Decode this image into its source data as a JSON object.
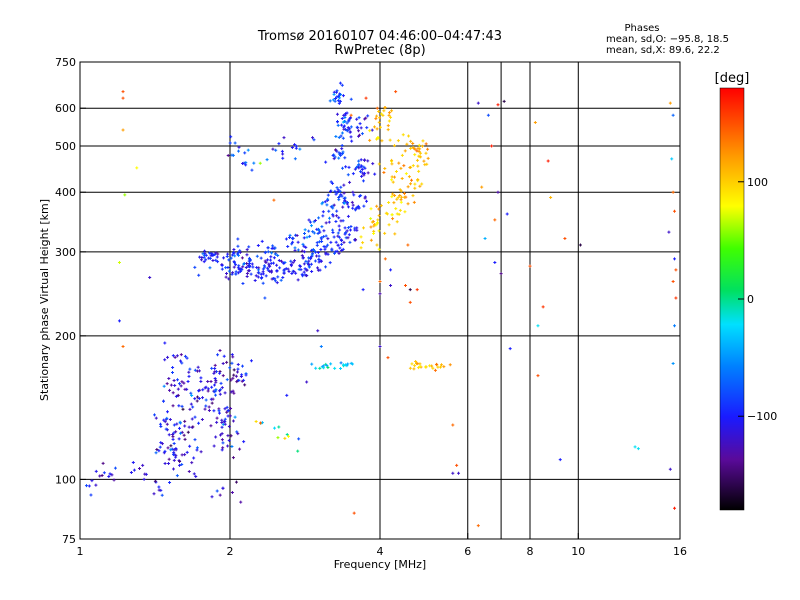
{
  "chart_data": {
    "type": "scatter",
    "title": "Tromsø 20160107 04:46:00–04:47:43",
    "subtitle": "RwPretec (8p)",
    "xlabel": "Frequency [MHz]",
    "ylabel": "Stationary phase Virtual Height [km]",
    "x_scale": "log",
    "y_scale": "log",
    "xlim": [
      1,
      16
    ],
    "ylim": [
      75,
      750
    ],
    "x_ticks": [
      1,
      2,
      4,
      6,
      8,
      10,
      16
    ],
    "x_tick_labels": [
      "1",
      "2",
      "4",
      "6",
      "8",
      "10",
      "16"
    ],
    "x_gridlines": [
      2,
      4,
      6,
      7,
      8,
      10
    ],
    "y_ticks": [
      75,
      100,
      200,
      300,
      400,
      500,
      600,
      750
    ],
    "y_tick_labels": [
      "75",
      "100",
      "200",
      "300",
      "400",
      "500",
      "600",
      "750"
    ],
    "y_gridlines": [
      100,
      200,
      300,
      400,
      500,
      600
    ],
    "grid": true,
    "info": {
      "heading": "Phases",
      "line_o": "mean, sd,O: −95.8, 18.5",
      "line_x": "mean, sd,X:  89.6, 22.2"
    },
    "colorbar": {
      "label": "[deg]",
      "range": [
        -180,
        180
      ],
      "ticks": [
        -100,
        0,
        100
      ],
      "tick_labels": [
        "−100",
        "0",
        "100"
      ]
    },
    "clusters": [
      {
        "name": "F2 O-mode trace lower branch",
        "phase_mean": -100,
        "phase_sd": 15,
        "centers": [
          [
            1.8,
            290
          ],
          [
            2.0,
            280
          ],
          [
            2.2,
            275
          ],
          [
            2.4,
            272
          ],
          [
            2.6,
            275
          ],
          [
            2.8,
            280
          ],
          [
            3.0,
            290
          ],
          [
            3.2,
            305
          ],
          [
            3.4,
            330
          ],
          [
            3.55,
            380
          ],
          [
            3.6,
            450
          ],
          [
            3.6,
            550
          ]
        ],
        "count_per_center": 28,
        "spread": [
          0.035,
          0.03
        ]
      },
      {
        "name": "F2 O-mode trace upper branch",
        "phase_mean": -85,
        "phase_sd": 20,
        "centers": [
          [
            2.1,
            295
          ],
          [
            2.4,
            300
          ],
          [
            2.7,
            315
          ],
          [
            3.0,
            330
          ],
          [
            3.2,
            360
          ],
          [
            3.3,
            400
          ],
          [
            3.3,
            470
          ],
          [
            3.4,
            560
          ],
          [
            3.3,
            630
          ]
        ],
        "count_per_center": 22,
        "spread": [
          0.03,
          0.035
        ]
      },
      {
        "name": "F2 X-mode trace",
        "phase_mean": 105,
        "phase_sd": 15,
        "centers": [
          [
            3.9,
            330
          ],
          [
            4.1,
            345
          ],
          [
            4.3,
            370
          ],
          [
            4.5,
            400
          ],
          [
            4.7,
            430
          ],
          [
            4.8,
            470
          ],
          [
            4.7,
            500
          ],
          [
            4.3,
            450
          ],
          [
            4.0,
            520
          ],
          [
            4.1,
            580
          ]
        ],
        "count_per_center": 15,
        "spread": [
          0.03,
          0.04
        ]
      },
      {
        "name": "Upper F trace near 2.5 MHz",
        "phase_mean": -85,
        "phase_sd": 20,
        "centers": [
          [
            2.05,
            480
          ],
          [
            2.2,
            470
          ],
          [
            2.5,
            490
          ],
          [
            2.8,
            500
          ]
        ],
        "count_per_center": 8,
        "spread": [
          0.03,
          0.03
        ]
      },
      {
        "name": "E-layer cluster",
        "phase_mean": -110,
        "phase_sd": 25,
        "centers": [
          [
            1.5,
            130
          ],
          [
            1.55,
            150
          ],
          [
            1.6,
            175
          ],
          [
            1.7,
            145
          ],
          [
            1.8,
            160
          ],
          [
            1.9,
            150
          ],
          [
            2.0,
            165
          ],
          [
            1.5,
            115
          ],
          [
            1.65,
            125
          ],
          [
            1.95,
            135
          ],
          [
            2.0,
            120
          ],
          [
            2.05,
            170
          ],
          [
            1.6,
            110
          ]
        ],
        "count_per_center": 20,
        "spread": [
          0.04,
          0.05
        ]
      },
      {
        "name": "Low-frequency E echoes",
        "phase_mean": -110,
        "phase_sd": 20,
        "centers": [
          [
            1.05,
            98
          ],
          [
            1.15,
            103
          ],
          [
            1.3,
            105
          ],
          [
            1.45,
            95
          ],
          [
            1.95,
            95
          ]
        ],
        "count_per_center": 8,
        "spread": [
          0.03,
          0.03
        ]
      },
      {
        "name": "Sporadic trace 3.2 MHz",
        "phase_mean": -30,
        "phase_sd": 15,
        "centers": [
          [
            3.1,
            172
          ],
          [
            3.4,
            173
          ]
        ],
        "count_per_center": 10,
        "spread": [
          0.02,
          0.01
        ]
      },
      {
        "name": "Sporadic trace 4.8 MHz",
        "phase_mean": 105,
        "phase_sd": 15,
        "centers": [
          [
            4.8,
            173
          ],
          [
            5.2,
            172
          ]
        ],
        "count_per_center": 12,
        "spread": [
          0.025,
          0.01
        ]
      },
      {
        "name": "Diagonal trace 2.3 MHz",
        "phase_mean": 40,
        "phase_sd": 60,
        "centers": [
          [
            2.3,
            130
          ],
          [
            2.5,
            125
          ],
          [
            2.7,
            120
          ]
        ],
        "count_per_center": 4,
        "spread": [
          0.02,
          0.02
        ]
      }
    ],
    "isolated_points": [
      [
        1.22,
        650,
        150
      ],
      [
        1.22,
        630,
        150
      ],
      [
        1.22,
        540,
        120
      ],
      [
        1.23,
        395,
        60
      ],
      [
        1.2,
        285,
        70
      ],
      [
        1.2,
        215,
        -100
      ],
      [
        1.22,
        190,
        140
      ],
      [
        1.38,
        265,
        -120
      ],
      [
        1.3,
        450,
        80
      ],
      [
        4.0,
        260,
        140
      ],
      [
        4.2,
        255,
        -120
      ],
      [
        4.5,
        255,
        150
      ],
      [
        4.6,
        250,
        -160
      ],
      [
        4.75,
        250,
        160
      ],
      [
        4.0,
        245,
        -130
      ],
      [
        3.7,
        250,
        -100
      ],
      [
        4.6,
        235,
        150
      ],
      [
        4.1,
        290,
        140
      ],
      [
        4.2,
        275,
        -100
      ],
      [
        4.0,
        190,
        -120
      ],
      [
        4.15,
        180,
        150
      ],
      [
        5.6,
        103,
        -120
      ],
      [
        5.75,
        103,
        -120
      ],
      [
        5.7,
        107,
        150
      ],
      [
        6.3,
        80,
        140
      ],
      [
        6.3,
        615,
        -120
      ],
      [
        6.9,
        610,
        170
      ],
      [
        7.1,
        620,
        -160
      ],
      [
        6.6,
        580,
        -80
      ],
      [
        6.7,
        500,
        170
      ],
      [
        6.4,
        410,
        120
      ],
      [
        6.9,
        400,
        -130
      ],
      [
        7.2,
        360,
        -100
      ],
      [
        6.8,
        350,
        140
      ],
      [
        6.5,
        320,
        -40
      ],
      [
        6.8,
        285,
        -100
      ],
      [
        7.0,
        270,
        -140
      ],
      [
        8.2,
        560,
        120
      ],
      [
        8.0,
        280,
        150
      ],
      [
        8.5,
        230,
        160
      ],
      [
        8.3,
        210,
        -20
      ],
      [
        7.3,
        188,
        -100
      ],
      [
        8.3,
        165,
        150
      ],
      [
        8.7,
        465,
        170
      ],
      [
        8.8,
        390,
        110
      ],
      [
        9.4,
        320,
        150
      ],
      [
        10.1,
        310,
        -160
      ],
      [
        13.0,
        117,
        -20
      ],
      [
        13.2,
        116,
        -20
      ],
      [
        9.2,
        110,
        -100
      ],
      [
        15.3,
        615,
        120
      ],
      [
        15.5,
        580,
        -70
      ],
      [
        15.4,
        470,
        -30
      ],
      [
        15.5,
        400,
        140
      ],
      [
        15.6,
        365,
        150
      ],
      [
        15.2,
        330,
        -120
      ],
      [
        15.6,
        290,
        -100
      ],
      [
        15.7,
        275,
        150
      ],
      [
        15.5,
        260,
        150
      ],
      [
        15.7,
        240,
        160
      ],
      [
        15.6,
        210,
        -60
      ],
      [
        15.5,
        175,
        -50
      ],
      [
        15.3,
        105,
        -120
      ],
      [
        15.6,
        87,
        170
      ],
      [
        2.3,
        460,
        60
      ],
      [
        2.45,
        385,
        140
      ],
      [
        2.85,
        160,
        -120
      ],
      [
        2.6,
        150,
        -100
      ],
      [
        3.0,
        205,
        -120
      ],
      [
        3.5,
        580,
        140
      ],
      [
        3.75,
        630,
        160
      ],
      [
        4.3,
        650,
        150
      ],
      [
        3.95,
        600,
        140
      ],
      [
        4.55,
        310,
        140
      ],
      [
        3.55,
        85,
        150
      ],
      [
        3.05,
        190,
        -60
      ],
      [
        2.35,
        240,
        -80
      ],
      [
        5.6,
        130,
        140
      ]
    ]
  }
}
